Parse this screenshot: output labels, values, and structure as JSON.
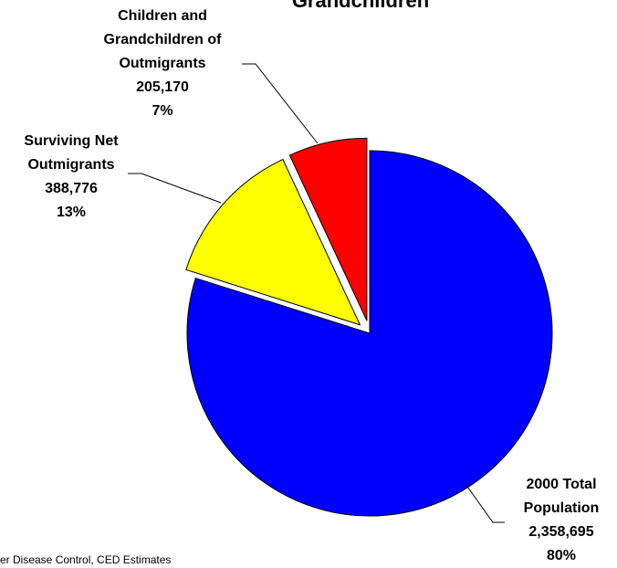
{
  "chart_data": {
    "type": "pie",
    "title": "Grandchildren",
    "source": "er Disease Control, CED Estimates",
    "categories": [
      "2000 Total Population",
      "Surviving Net Outmigrants",
      "Children and Grandchildren of Outmigrants"
    ],
    "values": [
      2358695,
      388776,
      205170
    ],
    "value_labels": [
      "2,358,695",
      "388,776",
      "205,170"
    ],
    "percents": [
      80,
      13,
      7
    ],
    "percent_labels": [
      "80%",
      "13%",
      "7%"
    ],
    "colors": [
      "#0000ff",
      "#ffff00",
      "#ff0000"
    ]
  }
}
